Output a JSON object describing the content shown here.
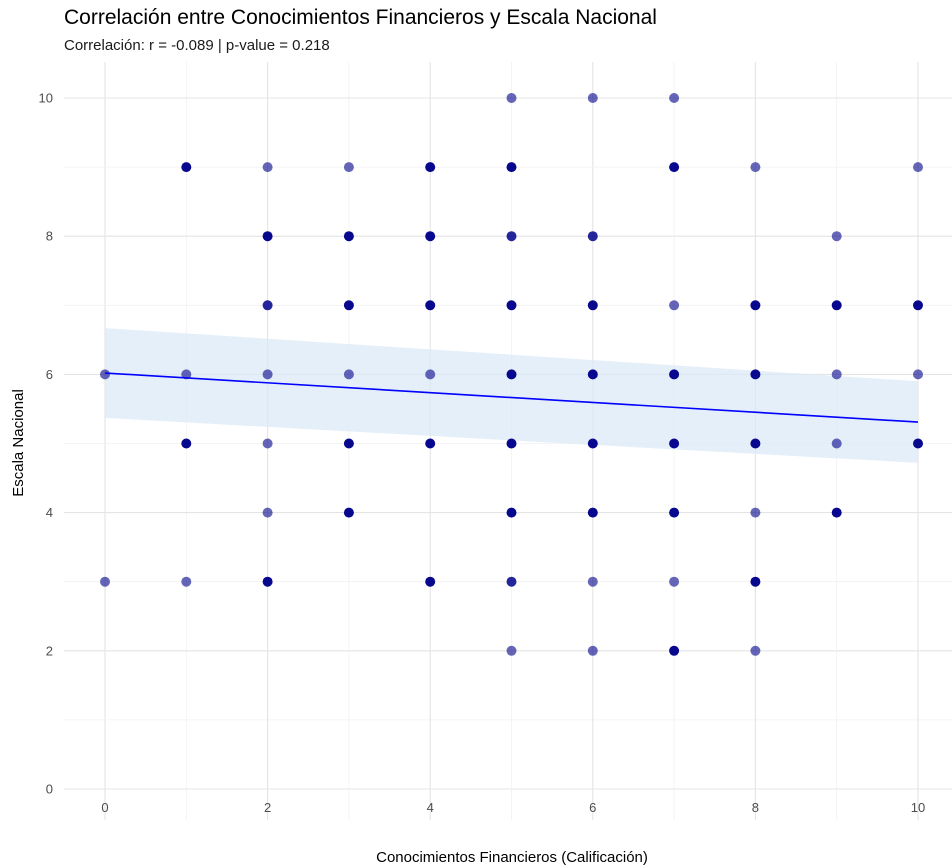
{
  "chart_data": {
    "type": "scatter",
    "title": "Correlación entre Conocimientos Financieros y Escala Nacional",
    "subtitle": "Correlación: r = -0.089 | p-value = 0.218",
    "xlabel": "Conocimientos Financieros (Calificación)",
    "ylabel": "Escala Nacional",
    "xlim": [
      -0.3,
      10.3
    ],
    "ylim": [
      -0.3,
      10.3
    ],
    "xticks": [
      0,
      2,
      4,
      6,
      8,
      10
    ],
    "yticks": [
      0,
      2,
      4,
      6,
      8,
      10
    ],
    "grid": true,
    "legend": "none",
    "colors": {
      "point": "#00008B",
      "line": "#0000FF",
      "band": "#DCEAF7"
    },
    "points": [
      {
        "x": 0,
        "y": 6,
        "n": 1
      },
      {
        "x": 0,
        "y": 3,
        "n": 1
      },
      {
        "x": 1,
        "y": 9,
        "n": 3
      },
      {
        "x": 1,
        "y": 6,
        "n": 1
      },
      {
        "x": 1,
        "y": 5,
        "n": 3
      },
      {
        "x": 1,
        "y": 3,
        "n": 1
      },
      {
        "x": 2,
        "y": 9,
        "n": 1
      },
      {
        "x": 2,
        "y": 8,
        "n": 3
      },
      {
        "x": 2,
        "y": 7,
        "n": 2
      },
      {
        "x": 2,
        "y": 6,
        "n": 1
      },
      {
        "x": 2,
        "y": 5,
        "n": 1
      },
      {
        "x": 2,
        "y": 4,
        "n": 1
      },
      {
        "x": 2,
        "y": 3,
        "n": 3
      },
      {
        "x": 3,
        "y": 9,
        "n": 1
      },
      {
        "x": 3,
        "y": 8,
        "n": 3
      },
      {
        "x": 3,
        "y": 7,
        "n": 3
      },
      {
        "x": 3,
        "y": 6,
        "n": 1
      },
      {
        "x": 3,
        "y": 5,
        "n": 3
      },
      {
        "x": 3,
        "y": 4,
        "n": 3
      },
      {
        "x": 4,
        "y": 9,
        "n": 3
      },
      {
        "x": 4,
        "y": 8,
        "n": 3
      },
      {
        "x": 4,
        "y": 7,
        "n": 3
      },
      {
        "x": 4,
        "y": 6,
        "n": 1
      },
      {
        "x": 4,
        "y": 5,
        "n": 3
      },
      {
        "x": 4,
        "y": 3,
        "n": 3
      },
      {
        "x": 5,
        "y": 10,
        "n": 1
      },
      {
        "x": 5,
        "y": 9,
        "n": 3
      },
      {
        "x": 5,
        "y": 8,
        "n": 2
      },
      {
        "x": 5,
        "y": 7,
        "n": 3
      },
      {
        "x": 5,
        "y": 6,
        "n": 3
      },
      {
        "x": 5,
        "y": 5,
        "n": 3
      },
      {
        "x": 5,
        "y": 4,
        "n": 3
      },
      {
        "x": 5,
        "y": 3,
        "n": 2
      },
      {
        "x": 5,
        "y": 2,
        "n": 1
      },
      {
        "x": 6,
        "y": 10,
        "n": 1
      },
      {
        "x": 6,
        "y": 8,
        "n": 2
      },
      {
        "x": 6,
        "y": 7,
        "n": 3
      },
      {
        "x": 6,
        "y": 6,
        "n": 3
      },
      {
        "x": 6,
        "y": 5,
        "n": 3
      },
      {
        "x": 6,
        "y": 4,
        "n": 3
      },
      {
        "x": 6,
        "y": 3,
        "n": 1
      },
      {
        "x": 6,
        "y": 2,
        "n": 1
      },
      {
        "x": 7,
        "y": 10,
        "n": 1
      },
      {
        "x": 7,
        "y": 9,
        "n": 3
      },
      {
        "x": 7,
        "y": 7,
        "n": 1
      },
      {
        "x": 7,
        "y": 6,
        "n": 3
      },
      {
        "x": 7,
        "y": 5,
        "n": 3
      },
      {
        "x": 7,
        "y": 4,
        "n": 3
      },
      {
        "x": 7,
        "y": 3,
        "n": 1
      },
      {
        "x": 7,
        "y": 2,
        "n": 3
      },
      {
        "x": 8,
        "y": 9,
        "n": 1
      },
      {
        "x": 8,
        "y": 7,
        "n": 3
      },
      {
        "x": 8,
        "y": 6,
        "n": 3
      },
      {
        "x": 8,
        "y": 5,
        "n": 3
      },
      {
        "x": 8,
        "y": 4,
        "n": 1
      },
      {
        "x": 8,
        "y": 3,
        "n": 3
      },
      {
        "x": 8,
        "y": 2,
        "n": 1
      },
      {
        "x": 9,
        "y": 8,
        "n": 1
      },
      {
        "x": 9,
        "y": 7,
        "n": 3
      },
      {
        "x": 9,
        "y": 6,
        "n": 1
      },
      {
        "x": 9,
        "y": 5,
        "n": 1
      },
      {
        "x": 9,
        "y": 4,
        "n": 3
      },
      {
        "x": 10,
        "y": 9,
        "n": 1
      },
      {
        "x": 10,
        "y": 7,
        "n": 3
      },
      {
        "x": 10,
        "y": 6,
        "n": 1
      },
      {
        "x": 10,
        "y": 5,
        "n": 3
      }
    ],
    "regression": {
      "x": [
        0,
        10
      ],
      "y": [
        6.02,
        5.31
      ],
      "ci_lower": [
        5.37,
        4.72
      ],
      "ci_upper": [
        6.67,
        5.9
      ]
    }
  }
}
